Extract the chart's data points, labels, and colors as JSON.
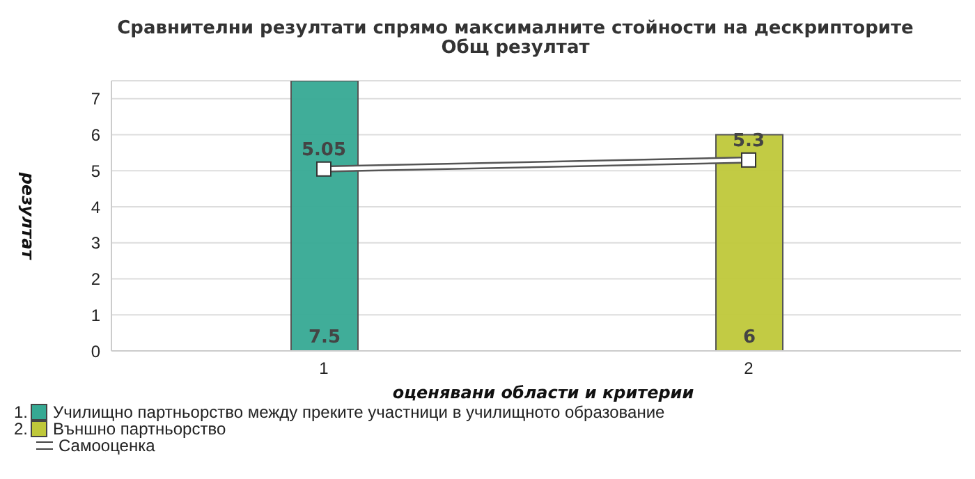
{
  "chart_data": {
    "type": "bar",
    "title": "Сравнителни  резултати  спрямо  максималните  стойности  на  дескрипторите",
    "subtitle": "Общ резултат",
    "xlabel": "оценявани области и критерии",
    "ylabel": "резултат",
    "categories": [
      "1",
      "2"
    ],
    "series": [
      {
        "name": "1. Училищно партньорство между преките участници в училищното образование",
        "color": "#36a993",
        "values": [
          7.5,
          null
        ]
      },
      {
        "name": "2. Външно партньорство",
        "color": "#bfc83a",
        "values": [
          null,
          6
        ]
      },
      {
        "type": "line",
        "name": "Самооценка",
        "color": "#ffffff",
        "values": [
          5.05,
          5.3
        ]
      }
    ],
    "ylim": [
      0,
      7.5
    ],
    "yticks": [
      0,
      1,
      2,
      3,
      4,
      5,
      6,
      7
    ],
    "grid": "y",
    "legend": "bottom left",
    "marker": "square",
    "data_labels": true
  }
}
